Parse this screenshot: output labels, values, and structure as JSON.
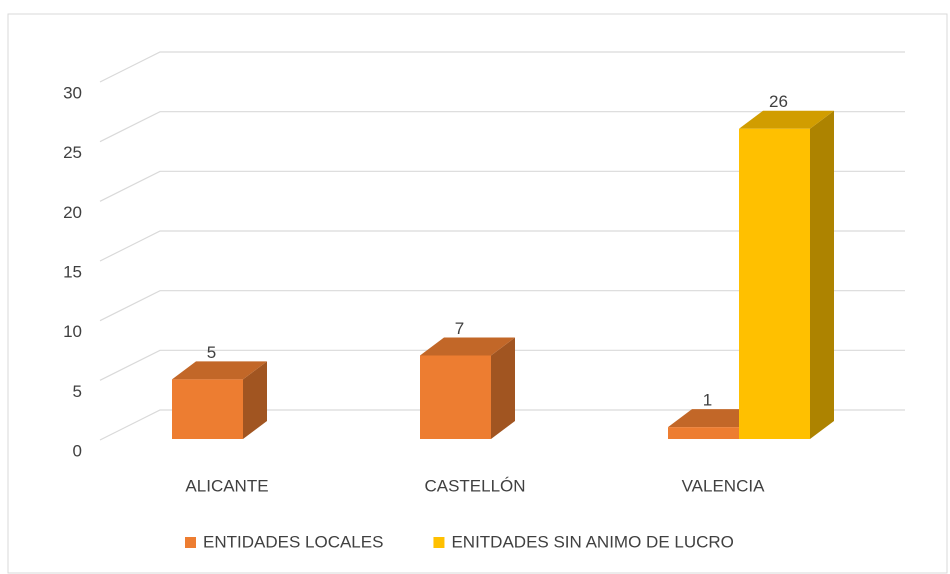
{
  "chart_data": {
    "type": "bar3d",
    "categories": [
      "ALICANTE",
      "CASTELLÓN",
      "VALENCIA"
    ],
    "series": [
      {
        "name": "ENTIDADES LOCALES",
        "color": "#ED7D31",
        "values": [
          5,
          7,
          1
        ]
      },
      {
        "name": "ENITDADES SIN ANIMO DE LUCRO",
        "color": "#FFC000",
        "values": [
          null,
          null,
          26
        ]
      }
    ],
    "ylim": [
      0,
      30
    ],
    "yticks": [
      0,
      5,
      10,
      15,
      20,
      25,
      30
    ],
    "grid": true,
    "legend": "bottom"
  }
}
